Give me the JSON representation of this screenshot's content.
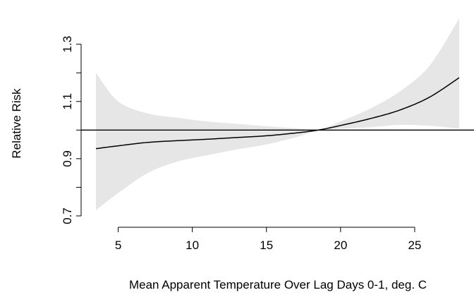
{
  "chart_data": {
    "type": "line",
    "title": "",
    "xlabel": "Mean Apparent Temperature Over Lag Days 0-1, deg. C",
    "ylabel": "Relative Risk",
    "xlim": [
      2.5,
      29.0
    ],
    "ylim": [
      0.69,
      1.42
    ],
    "x_ticks": [
      5,
      10,
      15,
      20,
      25
    ],
    "y_ticks": [
      0.7,
      0.9,
      1.1,
      1.3
    ],
    "x_tick_labels": [
      "5",
      "10",
      "15",
      "20",
      "25"
    ],
    "y_tick_labels": [
      "0.7",
      "0.9",
      "1.1",
      "1.3"
    ],
    "reference_line": 1.0,
    "band_color": "#e6e6e6",
    "line_color": "#000000",
    "series": [
      {
        "x": [
          3.5,
          5,
          7,
          9,
          11,
          13,
          15,
          17,
          18.5,
          20,
          22,
          24,
          26,
          28
        ],
        "y": [
          0.935,
          0.945,
          0.957,
          0.963,
          0.968,
          0.974,
          0.98,
          0.99,
          1.0,
          1.016,
          1.04,
          1.07,
          1.115,
          1.183
        ],
        "lower": [
          0.72,
          0.78,
          0.85,
          0.89,
          0.912,
          0.932,
          0.95,
          0.975,
          1.0,
          1.005,
          1.01,
          1.018,
          1.015,
          1.005
        ],
        "upper": [
          1.2,
          1.1,
          1.058,
          1.043,
          1.03,
          1.022,
          1.013,
          1.006,
          1.0,
          1.03,
          1.075,
          1.135,
          1.225,
          1.39
        ]
      }
    ]
  }
}
